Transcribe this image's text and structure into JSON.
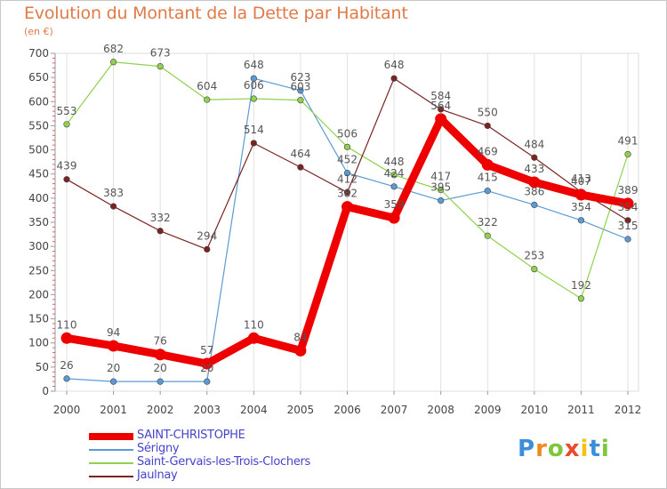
{
  "chart_data": {
    "type": "line",
    "title": "Evolution du Montant de la Dette par Habitant",
    "subtitle": "(en €)",
    "xlabel": "",
    "ylabel": "",
    "x": [
      "2000",
      "2001",
      "2002",
      "2003",
      "2004",
      "2005",
      "2006",
      "2007",
      "2008",
      "2009",
      "2010",
      "2011",
      "2012"
    ],
    "ylim": [
      0,
      700
    ],
    "yticks": [
      0,
      50,
      100,
      150,
      200,
      250,
      300,
      350,
      400,
      450,
      500,
      550,
      600,
      650,
      700
    ],
    "grid": "vertical",
    "legend_position": "bottom-left",
    "series": [
      {
        "name": "SAINT-CHRISTOPHE",
        "color": "#ee0000",
        "emphasis": true,
        "values": [
          110,
          94,
          76,
          57,
          110,
          84,
          382,
          359,
          564,
          469,
          433,
          407,
          389
        ]
      },
      {
        "name": "Sérigny",
        "color": "#5b9bd5",
        "emphasis": false,
        "values": [
          26,
          20,
          20,
          20,
          648,
          623,
          452,
          424,
          395,
          415,
          386,
          354,
          315
        ]
      },
      {
        "name": "Saint-Gervais-les-Trois-Clochers",
        "color": "#92d050",
        "emphasis": false,
        "values": [
          553,
          682,
          673,
          604,
          606,
          603,
          506,
          448,
          417,
          322,
          253,
          192,
          491
        ]
      },
      {
        "name": "Jaulnay",
        "color": "#7b2323",
        "emphasis": false,
        "values": [
          439,
          383,
          332,
          294,
          514,
          464,
          412,
          648,
          584,
          550,
          484,
          413,
          354
        ]
      }
    ]
  },
  "logo": {
    "letters": [
      "P",
      "r",
      "o",
      "x",
      "i",
      "t",
      "i"
    ],
    "colors": [
      "#3b8fd9",
      "#f08a24",
      "#7ec63d",
      "#e94b2c",
      "#f5c21b",
      "#3b8fd9",
      "#7ec63d"
    ]
  }
}
